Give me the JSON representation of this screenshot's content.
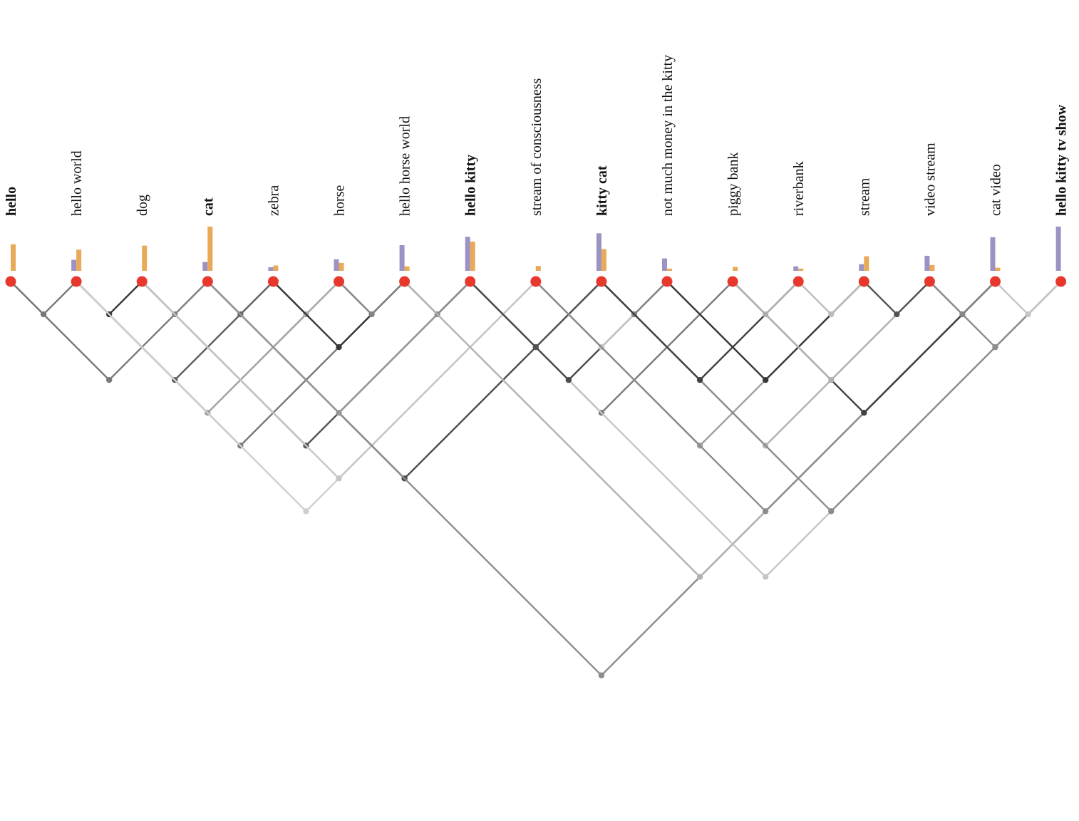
{
  "terms": [
    {
      "label": "hello",
      "bold": true,
      "purple": 0,
      "orange": 0.6
    },
    {
      "label": "hello world",
      "bold": false,
      "purple": 0.25,
      "orange": 0.48
    },
    {
      "label": "dog",
      "bold": false,
      "purple": 0,
      "orange": 0.57
    },
    {
      "label": "cat",
      "bold": true,
      "purple": 0.2,
      "orange": 1.0
    },
    {
      "label": "zebra",
      "bold": false,
      "purple": 0.08,
      "orange": 0.12
    },
    {
      "label": "horse",
      "bold": false,
      "purple": 0.26,
      "orange": 0.18
    },
    {
      "label": "hello horse world",
      "bold": false,
      "purple": 0.58,
      "orange": 0.1
    },
    {
      "label": "hello kitty",
      "bold": true,
      "purple": 0.77,
      "orange": 0.66
    },
    {
      "label": "stream of consciousness",
      "bold": false,
      "purple": 0,
      "orange": 0.11
    },
    {
      "label": "kitty cat",
      "bold": true,
      "purple": 0.85,
      "orange": 0.49
    },
    {
      "label": "not much money in the kitty",
      "bold": false,
      "purple": 0.28,
      "orange": 0.05
    },
    {
      "label": "piggy bank",
      "bold": false,
      "purple": 0,
      "orange": 0.09
    },
    {
      "label": "riverbank",
      "bold": false,
      "purple": 0.1,
      "orange": 0.05
    },
    {
      "label": "stream",
      "bold": false,
      "purple": 0.15,
      "orange": 0.33
    },
    {
      "label": "video stream",
      "bold": false,
      "purple": 0.34,
      "orange": 0.13
    },
    {
      "label": "cat video",
      "bold": false,
      "purple": 0.76,
      "orange": 0.07
    },
    {
      "label": "hello kitty tv show",
      "bold": true,
      "purple": 1.0,
      "orange": 0
    }
  ],
  "links": [
    [
      0,
      1,
      0.6
    ],
    [
      0,
      3,
      0.6
    ],
    [
      1,
      2,
      0.95
    ],
    [
      1,
      4,
      0.75
    ],
    [
      1,
      5,
      0.4
    ],
    [
      1,
      6,
      0.6
    ],
    [
      1,
      8,
      0.15
    ],
    [
      2,
      3,
      0.55
    ],
    [
      2,
      7,
      0.8
    ],
    [
      2,
      8,
      0.2
    ],
    [
      3,
      4,
      0.7
    ],
    [
      3,
      9,
      0.85
    ],
    [
      3,
      15,
      0.5
    ],
    [
      3,
      7,
      0.45
    ],
    [
      4,
      5,
      0.35
    ],
    [
      4,
      6,
      0.95
    ],
    [
      5,
      6,
      0.55
    ],
    [
      6,
      7,
      0.5
    ],
    [
      6,
      15,
      0.3
    ],
    [
      7,
      9,
      0.8
    ],
    [
      7,
      11,
      0.6
    ],
    [
      7,
      16,
      0.2
    ],
    [
      7,
      10,
      0.85
    ],
    [
      8,
      10,
      0.2
    ],
    [
      8,
      13,
      0.4
    ],
    [
      8,
      15,
      0.5
    ],
    [
      9,
      10,
      0.55
    ],
    [
      9,
      14,
      0.3
    ],
    [
      9,
      16,
      0.5
    ],
    [
      9,
      12,
      0.9
    ],
    [
      10,
      13,
      0.95
    ],
    [
      11,
      12,
      0.3
    ],
    [
      11,
      15,
      0.9
    ],
    [
      11,
      14,
      0.3
    ],
    [
      12,
      13,
      0.25
    ],
    [
      13,
      14,
      0.8
    ],
    [
      14,
      15,
      0.55
    ],
    [
      14,
      16,
      0.5
    ],
    [
      15,
      16,
      0.2
    ]
  ],
  "colors": {
    "node": "#e8372c",
    "purple_bar": "#9c92c3",
    "orange_bar": "#e8aa58"
  }
}
